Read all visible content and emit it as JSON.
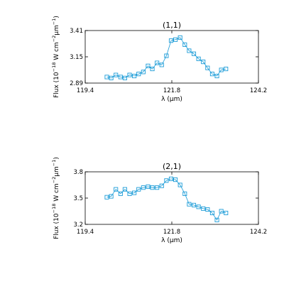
{
  "chart_data": [
    {
      "type": "line",
      "title": "(1,1)",
      "xlabel": "λ (μm)",
      "ylabel_parts": {
        "prefix": "Flux (10",
        "exp1": "−18",
        "mid": " W cm",
        "exp2": "−2",
        "mid2": "μm",
        "exp3": "−1",
        "suffix": ")"
      },
      "xlim": [
        119.4,
        124.2
      ],
      "ylim": [
        2.89,
        3.41
      ],
      "xticks": [
        119.4,
        121.8,
        124.2
      ],
      "xtick_labels": [
        "119.4",
        "121.8",
        "124.2"
      ],
      "yticks": [
        2.89,
        3.15,
        3.41
      ],
      "ytick_labels": [
        "2.89",
        "3.15",
        "3.41"
      ],
      "marker": "square",
      "color": "#1a9bd7",
      "grid": false,
      "x": [
        120.0,
        120.12,
        120.25,
        120.38,
        120.5,
        120.63,
        120.76,
        120.88,
        121.01,
        121.14,
        121.26,
        121.39,
        121.52,
        121.65,
        121.78,
        121.9,
        122.03,
        122.16,
        122.28,
        122.41,
        122.54,
        122.67,
        122.79,
        122.92,
        123.05,
        123.17,
        123.3
      ],
      "y": [
        2.95,
        2.94,
        2.97,
        2.95,
        2.94,
        2.97,
        2.96,
        2.98,
        3.0,
        3.06,
        3.03,
        3.09,
        3.07,
        3.16,
        3.31,
        3.32,
        3.34,
        3.27,
        3.21,
        3.18,
        3.13,
        3.1,
        3.04,
        2.98,
        2.96,
        3.02,
        3.03
      ]
    },
    {
      "type": "line",
      "title": "(2,1)",
      "xlabel": "λ (μm)",
      "ylabel_parts": {
        "prefix": "Flux (10",
        "exp1": "−18",
        "mid": " W cm",
        "exp2": "−2",
        "mid2": "μm",
        "exp3": "−1",
        "suffix": ")"
      },
      "xlim": [
        119.4,
        124.2
      ],
      "ylim": [
        3.2,
        3.8
      ],
      "xticks": [
        119.4,
        121.8,
        124.2
      ],
      "xtick_labels": [
        "119.4",
        "121.8",
        "124.2"
      ],
      "yticks": [
        3.2,
        3.5,
        3.8
      ],
      "ytick_labels": [
        "3.2",
        "3.5",
        "3.8"
      ],
      "marker": "square",
      "color": "#1a9bd7",
      "grid": false,
      "x": [
        120.0,
        120.12,
        120.25,
        120.38,
        120.5,
        120.63,
        120.76,
        120.88,
        121.01,
        121.14,
        121.26,
        121.39,
        121.52,
        121.65,
        121.78,
        121.9,
        122.03,
        122.16,
        122.28,
        122.41,
        122.54,
        122.67,
        122.79,
        122.92,
        123.05,
        123.17,
        123.3
      ],
      "y": [
        3.51,
        3.52,
        3.6,
        3.55,
        3.6,
        3.55,
        3.56,
        3.6,
        3.62,
        3.63,
        3.62,
        3.62,
        3.64,
        3.7,
        3.72,
        3.71,
        3.65,
        3.55,
        3.43,
        3.42,
        3.4,
        3.38,
        3.37,
        3.33,
        3.25,
        3.35,
        3.33
      ]
    }
  ]
}
